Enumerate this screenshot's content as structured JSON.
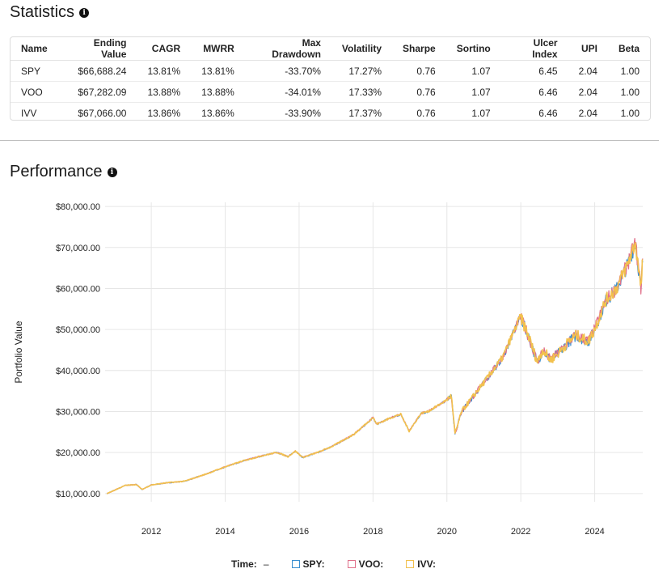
{
  "statistics": {
    "title": "Statistics",
    "columns": [
      "Name",
      "Ending Value",
      "CAGR",
      "MWRR",
      "Max Drawdown",
      "Volatility",
      "Sharpe",
      "Sortino",
      "Ulcer Index",
      "UPI",
      "Beta"
    ],
    "rows": [
      [
        "SPY",
        "$66,688.24",
        "13.81%",
        "13.81%",
        "-33.70%",
        "17.27%",
        "0.76",
        "1.07",
        "6.45",
        "2.04",
        "1.00"
      ],
      [
        "VOO",
        "$67,282.09",
        "13.88%",
        "13.88%",
        "-34.01%",
        "17.33%",
        "0.76",
        "1.07",
        "6.46",
        "2.04",
        "1.00"
      ],
      [
        "IVV",
        "$67,066.00",
        "13.86%",
        "13.86%",
        "-33.90%",
        "17.37%",
        "0.76",
        "1.07",
        "6.46",
        "2.04",
        "1.00"
      ]
    ]
  },
  "performance": {
    "title": "Performance",
    "legend": {
      "time_label": "Time:",
      "time_value": "–",
      "entries": [
        "SPY:",
        "VOO:",
        "IVV:"
      ]
    }
  },
  "colors": {
    "SPY": "#3a8fd0",
    "VOO": "#e0708a",
    "IVV": "#f2c14e"
  },
  "chart_data": {
    "type": "line",
    "ylabel": "Portfolio Value",
    "xlabel": "",
    "xlim": [
      2010.75,
      2025.3
    ],
    "ylim": [
      8000,
      81000
    ],
    "yticks": [
      10000,
      20000,
      30000,
      40000,
      50000,
      60000,
      70000,
      80000
    ],
    "ytick_labels": [
      "$10,000.00",
      "$20,000.00",
      "$30,000.00",
      "$40,000.00",
      "$50,000.00",
      "$60,000.00",
      "$70,000.00",
      "$80,000.00"
    ],
    "xticks": [
      2012,
      2014,
      2016,
      2018,
      2020,
      2022,
      2024
    ],
    "xtick_labels": [
      "2012",
      "2014",
      "2016",
      "2018",
      "2020",
      "2022",
      "2024"
    ],
    "grid": true,
    "legend_position": "bottom",
    "series": [
      {
        "name": "SPY",
        "x": [
          2010.8,
          2011.3,
          2011.6,
          2011.75,
          2012.0,
          2012.4,
          2012.9,
          2013.5,
          2014.0,
          2014.5,
          2015.0,
          2015.4,
          2015.7,
          2015.9,
          2016.1,
          2016.5,
          2016.9,
          2017.5,
          2018.0,
          2018.1,
          2018.5,
          2018.75,
          2018.98,
          2019.3,
          2019.5,
          2019.95,
          2020.12,
          2020.22,
          2020.4,
          2020.7,
          2021.0,
          2021.5,
          2021.99,
          2022.2,
          2022.45,
          2022.6,
          2022.8,
          2023.0,
          2023.3,
          2023.5,
          2023.83,
          2024.0,
          2024.3,
          2024.6,
          2024.9,
          2025.1,
          2025.25,
          2025.3
        ],
        "y": [
          10000,
          12000,
          12200,
          11000,
          12100,
          12600,
          13000,
          14800,
          16500,
          18000,
          19200,
          20000,
          19000,
          20300,
          18800,
          20000,
          21500,
          24500,
          28500,
          26900,
          28500,
          29300,
          25200,
          29500,
          30000,
          32500,
          33800,
          24500,
          30000,
          33500,
          37000,
          43000,
          53000,
          48500,
          42000,
          45000,
          42500,
          44000,
          47000,
          48500,
          47000,
          50000,
          57000,
          60000,
          66000,
          71000,
          60000,
          66688
        ]
      },
      {
        "name": "VOO",
        "x": [
          2010.8,
          2011.3,
          2011.6,
          2011.75,
          2012.0,
          2012.4,
          2012.9,
          2013.5,
          2014.0,
          2014.5,
          2015.0,
          2015.4,
          2015.7,
          2015.9,
          2016.1,
          2016.5,
          2016.9,
          2017.5,
          2018.0,
          2018.1,
          2018.5,
          2018.75,
          2018.98,
          2019.3,
          2019.5,
          2019.95,
          2020.12,
          2020.22,
          2020.4,
          2020.7,
          2021.0,
          2021.5,
          2021.99,
          2022.2,
          2022.45,
          2022.6,
          2022.8,
          2023.0,
          2023.3,
          2023.5,
          2023.83,
          2024.0,
          2024.3,
          2024.6,
          2024.9,
          2025.1,
          2025.25,
          2025.3
        ],
        "y": [
          10000,
          12010,
          12210,
          11000,
          12110,
          12610,
          13020,
          14820,
          16530,
          18030,
          19230,
          20040,
          19030,
          20340,
          18830,
          20040,
          21540,
          24550,
          28560,
          26950,
          28560,
          29370,
          25240,
          29560,
          30060,
          32570,
          33880,
          24540,
          30060,
          33580,
          37090,
          43100,
          53130,
          48610,
          42090,
          45100,
          42590,
          44100,
          47120,
          48630,
          47120,
          50140,
          57150,
          60170,
          66180,
          71200,
          60170,
          67282
        ]
      },
      {
        "name": "IVV",
        "x": [
          2010.8,
          2011.3,
          2011.6,
          2011.75,
          2012.0,
          2012.4,
          2012.9,
          2013.5,
          2014.0,
          2014.5,
          2015.0,
          2015.4,
          2015.7,
          2015.9,
          2016.1,
          2016.5,
          2016.9,
          2017.5,
          2018.0,
          2018.1,
          2018.5,
          2018.75,
          2018.98,
          2019.3,
          2019.5,
          2019.95,
          2020.12,
          2020.22,
          2020.4,
          2020.7,
          2021.0,
          2021.5,
          2021.99,
          2022.2,
          2022.45,
          2022.6,
          2022.8,
          2023.0,
          2023.3,
          2023.5,
          2023.83,
          2024.0,
          2024.3,
          2024.6,
          2024.9,
          2025.1,
          2025.25,
          2025.3
        ],
        "y": [
          10000,
          12005,
          12205,
          11000,
          12105,
          12605,
          13010,
          14810,
          16520,
          18020,
          19220,
          20030,
          19020,
          20330,
          18820,
          20030,
          21530,
          24540,
          28550,
          26940,
          28550,
          29360,
          25230,
          29550,
          30050,
          32560,
          33870,
          24530,
          30050,
          33570,
          37080,
          43090,
          53110,
          48590,
          42070,
          45080,
          42570,
          44080,
          47100,
          48610,
          47100,
          50120,
          57130,
          60150,
          66150,
          71170,
          60150,
          67066
        ]
      }
    ]
  }
}
